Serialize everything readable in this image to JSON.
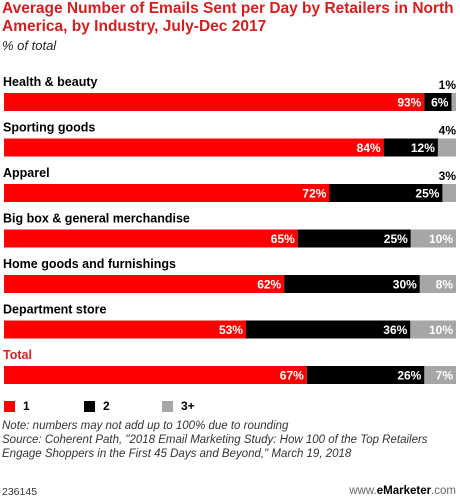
{
  "chart_data": {
    "type": "bar",
    "orientation": "horizontal",
    "stacked": true,
    "title": "Average Number of Emails Sent per Day by Retailers in North America, by Industry, July-Dec 2017",
    "subtitle": "% of total",
    "categories": [
      "Health & beauty",
      "Sporting goods",
      "Apparel",
      "Big box & general merchandise",
      "Home goods and furnishings",
      "Department store",
      "Total"
    ],
    "series": [
      {
        "name": "1",
        "color": "#ff0000",
        "values": [
          93,
          84,
          72,
          65,
          62,
          53,
          67
        ],
        "labels": [
          "93%",
          "84%",
          "72%",
          "65%",
          "62%",
          "53%",
          "67%"
        ]
      },
      {
        "name": "2",
        "color": "#000000",
        "values": [
          6,
          12,
          25,
          25,
          30,
          36,
          26
        ],
        "labels": [
          "6%",
          "12%",
          "25%",
          "25%",
          "30%",
          "36%",
          "26%"
        ]
      },
      {
        "name": "3+",
        "color": "#a6a6a6",
        "values": [
          1,
          4,
          3,
          10,
          8,
          10,
          7
        ],
        "labels": [
          "1%",
          "4%",
          "3%",
          "10%",
          "8%",
          "10%",
          "7%"
        ]
      }
    ],
    "legend_position": "bottom-left",
    "highlight_category": "Total",
    "highlight_color": "#d21f1f",
    "grid": false
  },
  "notes": {
    "note": "Note: numbers may not add up to 100% due to rounding",
    "source": "Source: Coherent Path, \"2018 Email Marketing Study: How 100 of the Top Retailers Engage Shoppers in the First 45 Days and Beyond,\" March 19, 2018"
  },
  "footer": {
    "chart_id": "236145",
    "brand_prefix": "www.",
    "brand_name": "eMarketer",
    "brand_suffix": ".com"
  }
}
